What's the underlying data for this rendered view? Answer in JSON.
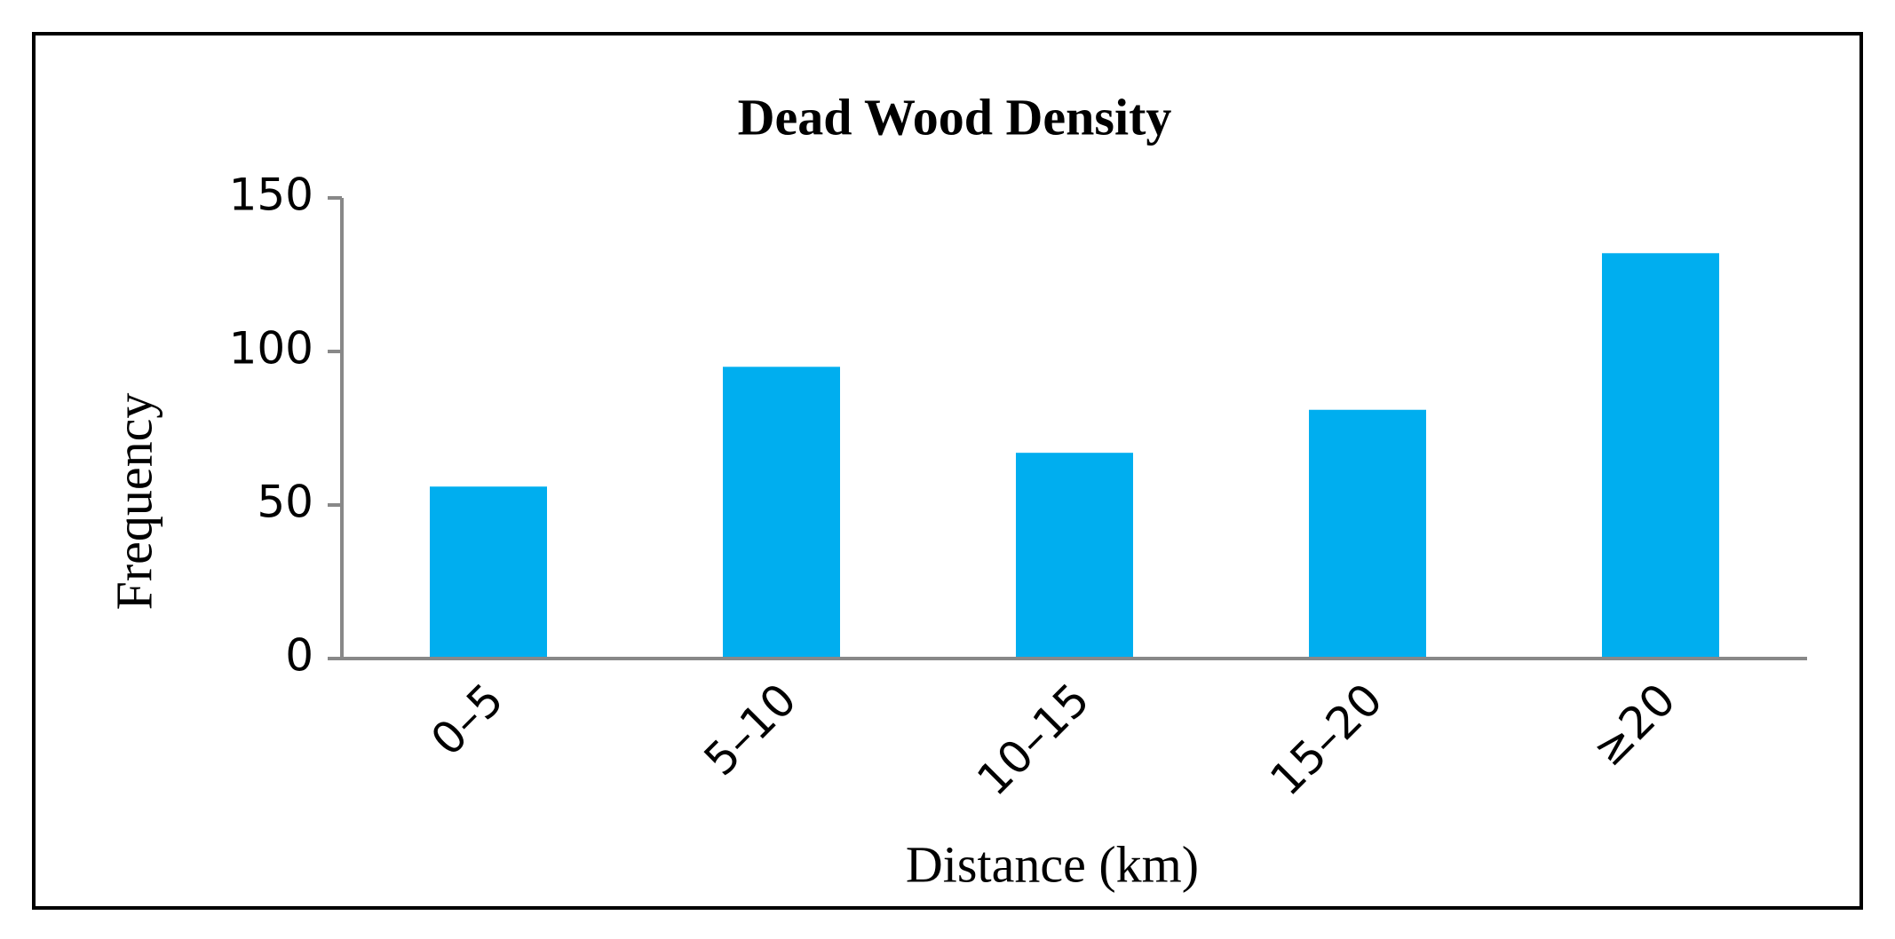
{
  "chart_data": {
    "type": "bar",
    "title": "Dead Wood Density",
    "x_label": "Distance (km)",
    "y_label": "Frequency",
    "categories": [
      "0–5",
      "5–10",
      "10–15",
      "15–20",
      "≥20"
    ],
    "values": [
      56,
      95,
      67,
      81,
      132
    ],
    "color": "#00aeef",
    "ylim": [
      0,
      150
    ],
    "yticks": [
      0,
      50,
      100,
      150
    ],
    "grid": false
  }
}
